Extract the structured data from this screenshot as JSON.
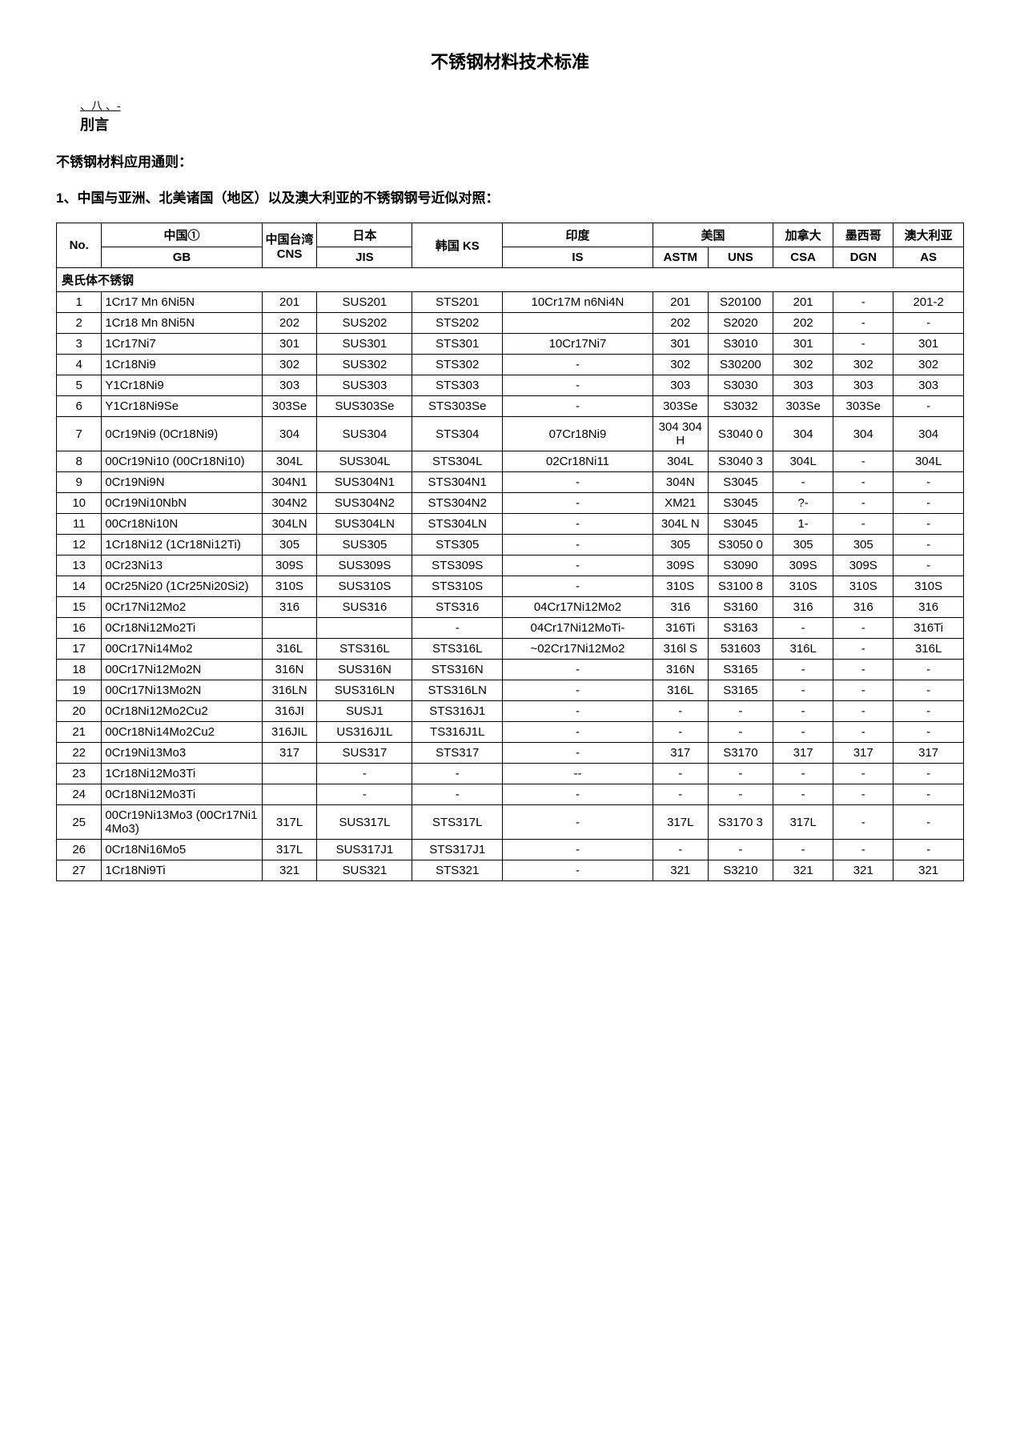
{
  "title": "不锈钢材料技术标准",
  "byline_top": "、八  、-",
  "byline_bottom": "刖言",
  "intro_line": "不锈钢材料应用通则：",
  "section_line": "1、中国与亚洲、北美诸国（地区）以及澳大利亚的不锈钢钢号近似对照：",
  "headers": {
    "no": "No.",
    "china": "中国①",
    "gb": "GB",
    "tw": "中国台湾 CNS",
    "jp": "日本",
    "jis": "JIS",
    "kr": "韩国 KS",
    "in": "印度",
    "is": "IS",
    "us": "美国",
    "astm": "ASTM",
    "uns": "UNS",
    "ca": "加拿大",
    "csa": "CSA",
    "mx": "墨西哥",
    "dgn": "DGN",
    "au": "澳大利亚",
    "as": "AS"
  },
  "section_label": "奥氏体不锈钢",
  "rows": [
    {
      "no": "1",
      "gb": "1Cr17 Mn 6Ni5N",
      "cns": "201",
      "jis": "SUS201",
      "ks": "STS201",
      "is": "10Cr17M n6Ni4N",
      "astm": "201",
      "uns": "S20100",
      "csa": "201",
      "dgn": "-",
      "as": "201-2"
    },
    {
      "no": "2",
      "gb": "1Cr18 Mn 8Ni5N",
      "cns": "202",
      "jis": "SUS202",
      "ks": "STS202",
      "is": "",
      "astm": "202",
      "uns": "S2020",
      "csa": "202",
      "dgn": "-",
      "as": "-"
    },
    {
      "no": "3",
      "gb": "1Cr17Ni7",
      "cns": "301",
      "jis": "SUS301",
      "ks": "STS301",
      "is": "10Cr17Ni7",
      "astm": "301",
      "uns": "S3010",
      "csa": "301",
      "dgn": "-",
      "as": "301"
    },
    {
      "no": "4",
      "gb": "1Cr18Ni9",
      "cns": "302",
      "jis": "SUS302",
      "ks": "STS302",
      "is": "-",
      "astm": "302",
      "uns": "S30200",
      "csa": "302",
      "dgn": "302",
      "as": "302"
    },
    {
      "no": "5",
      "gb": "Y1Cr18Ni9",
      "cns": "303",
      "jis": "SUS303",
      "ks": "STS303",
      "is": "-",
      "astm": "303",
      "uns": "S3030",
      "csa": "303",
      "dgn": "303",
      "as": "303"
    },
    {
      "no": "6",
      "gb": "Y1Cr18Ni9Se",
      "cns": "303Se",
      "jis": "SUS303Se",
      "ks": "STS303Se",
      "is": "-",
      "astm": "303Se",
      "uns": "S3032",
      "csa": "303Se",
      "dgn": "303Se",
      "as": "-"
    },
    {
      "no": "7",
      "gb": "0Cr19Ni9 (0Cr18Ni9)",
      "cns": "304",
      "jis": "SUS304",
      "ks": "STS304",
      "is": "07Cr18Ni9",
      "astm": "304 304H",
      "uns": "S3040 0",
      "csa": "304",
      "dgn": "304",
      "as": "304"
    },
    {
      "no": "8",
      "gb": "00Cr19Ni10 (00Cr18Ni10)",
      "cns": "304L",
      "jis": "SUS304L",
      "ks": "STS304L",
      "is": "02Cr18Ni11",
      "astm": "304L",
      "uns": "S3040 3",
      "csa": "304L",
      "dgn": "-",
      "as": "304L"
    },
    {
      "no": "9",
      "gb": "0Cr19Ni9N",
      "cns": "304N1",
      "jis": "SUS304N1",
      "ks": "STS304N1",
      "is": "-",
      "astm": "304N",
      "uns": "S3045",
      "csa": "-",
      "dgn": "-",
      "as": "-"
    },
    {
      "no": "10",
      "gb": "0Cr19Ni10NbN",
      "cns": "304N2",
      "jis": "SUS304N2",
      "ks": "STS304N2",
      "is": "-",
      "astm": "XM21",
      "uns": "S3045",
      "csa": "?-",
      "dgn": "-",
      "as": "-"
    },
    {
      "no": "11",
      "gb": "00Cr18Ni10N",
      "cns": "304LN",
      "jis": "SUS304LN",
      "ks": "STS304LN",
      "is": "-",
      "astm": "304L N",
      "uns": "S3045",
      "csa": "1-",
      "dgn": "-",
      "as": "-"
    },
    {
      "no": "12",
      "gb": "1Cr18Ni12 (1Cr18Ni12Ti)",
      "cns": "305",
      "jis": "SUS305",
      "ks": "STS305",
      "is": "-",
      "astm": "305",
      "uns": "S3050 0",
      "csa": "305",
      "dgn": "305",
      "as": "-"
    },
    {
      "no": "13",
      "gb": "0Cr23Ni13",
      "cns": "309S",
      "jis": "SUS309S",
      "ks": "STS309S",
      "is": "-",
      "astm": "309S",
      "uns": "S3090",
      "csa": "309S",
      "dgn": "309S",
      "as": "-"
    },
    {
      "no": "14",
      "gb": "0Cr25Ni20 (1Cr25Ni20Si2)",
      "cns": "310S",
      "jis": "SUS310S",
      "ks": "STS310S",
      "is": "-",
      "astm": "310S",
      "uns": "S3100 8",
      "csa": "310S",
      "dgn": "310S",
      "as": "310S"
    },
    {
      "no": "15",
      "gb": "0Cr17Ni12Mo2",
      "cns": "316",
      "jis": "SUS316",
      "ks": "STS316",
      "is": "04Cr17Ni12Mo2",
      "astm": "316",
      "uns": "S3160",
      "csa": "316",
      "dgn": "316",
      "as": "316"
    },
    {
      "no": "16",
      "gb": "0Cr18Ni12Mo2Ti",
      "cns": "",
      "jis": "",
      "ks": "-",
      "is": "04Cr17Ni12MoTi-",
      "astm": "316Ti",
      "uns": "S3163",
      "csa": "-",
      "dgn": "-",
      "as": "316Ti"
    },
    {
      "no": "17",
      "gb": "00Cr17Ni14Mo2",
      "cns": "316L",
      "jis": "STS316L",
      "ks": "STS316L",
      "is": "~02Cr17Ni12Mo2",
      "astm": "316l S",
      "uns": "531603",
      "csa": "316L",
      "dgn": "-",
      "as": "316L"
    },
    {
      "no": "18",
      "gb": "00Cr17Ni12Mo2N",
      "cns": "316N",
      "jis": "SUS316N",
      "ks": "STS316N",
      "is": "-",
      "astm": "316N",
      "uns": "S3165",
      "csa": "-",
      "dgn": "-",
      "as": "-"
    },
    {
      "no": "19",
      "gb": "00Cr17Ni13Mo2N",
      "cns": "316LN",
      "jis": "SUS316LN",
      "ks": "STS316LN",
      "is": "-",
      "astm": "316L",
      "uns": "S3165",
      "csa": "-",
      "dgn": "-",
      "as": "-"
    },
    {
      "no": "20",
      "gb": "0Cr18Ni12Mo2Cu2",
      "cns": "316JI",
      "jis": "SUSJ1",
      "ks": "STS316J1",
      "is": "-",
      "astm": "-",
      "uns": "-",
      "csa": "-",
      "dgn": "-",
      "as": "-"
    },
    {
      "no": "21",
      "gb": "00Cr18Ni14Mo2Cu2",
      "cns": "316JIL",
      "jis": "US316J1L",
      "ks": "TS316J1L",
      "is": "-",
      "astm": "-",
      "uns": "-",
      "csa": "-",
      "dgn": "-",
      "as": "-"
    },
    {
      "no": "22",
      "gb": "0Cr19Ni13Mo3",
      "cns": "317",
      "jis": "SUS317",
      "ks": "STS317",
      "is": "-",
      "astm": "317",
      "uns": "S3170",
      "csa": "317",
      "dgn": "317",
      "as": "317"
    },
    {
      "no": "23",
      "gb": "1Cr18Ni12Mo3Ti",
      "cns": "",
      "jis": "-",
      "ks": "-",
      "is": "--",
      "astm": "-",
      "uns": "-",
      "csa": "-",
      "dgn": "-",
      "as": "-"
    },
    {
      "no": "24",
      "gb": "0Cr18Ni12Mo3Ti",
      "cns": "",
      "jis": "-",
      "ks": "-",
      "is": "-",
      "astm": "-",
      "uns": "-",
      "csa": "-",
      "dgn": "-",
      "as": "-"
    },
    {
      "no": "25",
      "gb": "00Cr19Ni13Mo3 (00Cr17Ni14Mo3)",
      "cns": "317L",
      "jis": "SUS317L",
      "ks": "STS317L",
      "is": "-",
      "astm": "317L",
      "uns": "S3170 3",
      "csa": "317L",
      "dgn": "-",
      "as": "-"
    },
    {
      "no": "26",
      "gb": "0Cr18Ni16Mo5",
      "cns": "317L",
      "jis": "SUS317J1",
      "ks": "STS317J1",
      "is": "-",
      "astm": "-",
      "uns": "-",
      "csa": "-",
      "dgn": "-",
      "as": "-"
    },
    {
      "no": "27",
      "gb": "1Cr18Ni9Ti",
      "cns": "321",
      "jis": "SUS321",
      "ks": "STS321",
      "is": "-",
      "astm": "321",
      "uns": "S3210",
      "csa": "321",
      "dgn": "321",
      "as": "321"
    }
  ]
}
